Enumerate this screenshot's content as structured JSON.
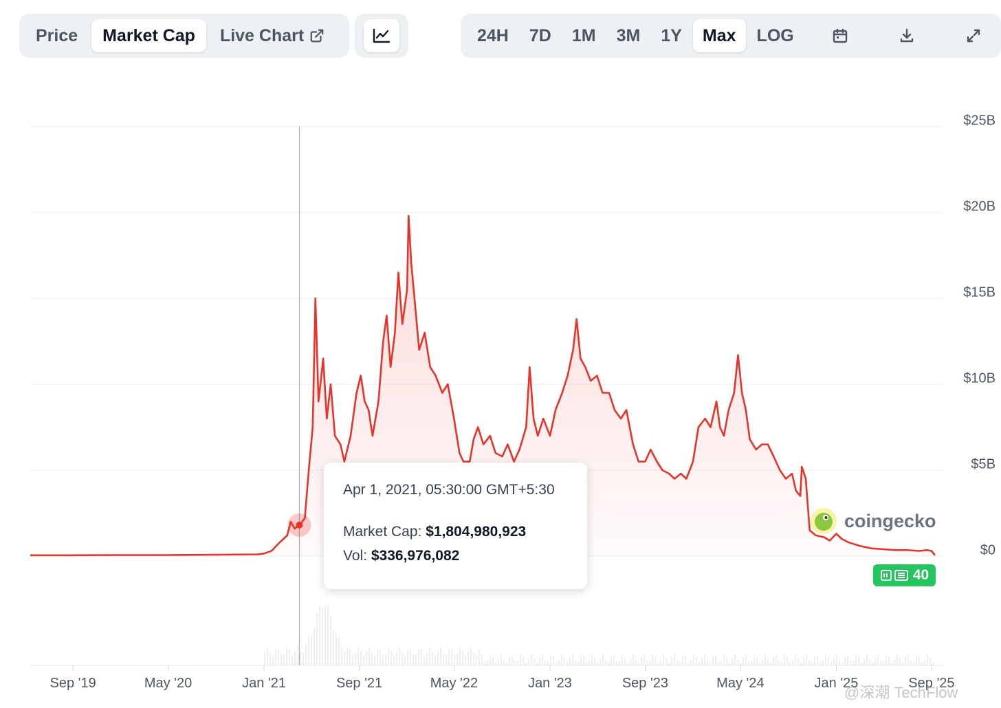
{
  "view_tabs": [
    {
      "label": "Price",
      "active": false
    },
    {
      "label": "Market Cap",
      "active": true
    },
    {
      "label": "Live Chart",
      "active": false
    }
  ],
  "chart_type_toggle_icon": "line-chart-icon",
  "range_tabs": [
    {
      "label": "24H",
      "active": false
    },
    {
      "label": "7D",
      "active": false
    },
    {
      "label": "1M",
      "active": false
    },
    {
      "label": "3M",
      "active": false
    },
    {
      "label": "1Y",
      "active": false
    },
    {
      "label": "Max",
      "active": true
    },
    {
      "label": "LOG",
      "active": false
    }
  ],
  "toolbar_icons": [
    "calendar-icon",
    "download-icon",
    "expand-icon"
  ],
  "tooltip": {
    "date": "Apr 1, 2021, 05:30:00 GMT+5:30",
    "market_cap_label": "Market Cap:",
    "market_cap_value": "$1,804,980,923",
    "vol_label": "Vol:",
    "vol_value": "$336,976,082"
  },
  "watermark": {
    "text": "coingecko"
  },
  "news_badge": {
    "count": "40"
  },
  "corner_watermark": "@深潮 TechFlow",
  "colors": {
    "line": "#e8332a",
    "badge": "#22c55e"
  },
  "chart_data": {
    "type": "area",
    "series_metric": "Market Cap (USD billions)",
    "ylim": [
      0,
      25
    ],
    "y_ticks": [
      {
        "value": 25,
        "label": "$25B"
      },
      {
        "value": 20,
        "label": "$20B"
      },
      {
        "value": 15,
        "label": "$15B"
      },
      {
        "value": 10,
        "label": "$10B"
      },
      {
        "value": 5,
        "label": "$5B"
      },
      {
        "value": 0,
        "label": "$0"
      }
    ],
    "xlim": [
      "2019-05-15",
      "2025-10-01"
    ],
    "x_ticks": [
      {
        "date": "2019-09-01",
        "label": "Sep '19"
      },
      {
        "date": "2020-05-01",
        "label": "May '20"
      },
      {
        "date": "2021-01-01",
        "label": "Jan '21"
      },
      {
        "date": "2021-09-01",
        "label": "Sep '21"
      },
      {
        "date": "2022-05-01",
        "label": "May '22"
      },
      {
        "date": "2023-01-01",
        "label": "Jan '23"
      },
      {
        "date": "2023-09-01",
        "label": "Sep '23"
      },
      {
        "date": "2024-05-01",
        "label": "May '24"
      },
      {
        "date": "2025-01-01",
        "label": "Jan '25"
      },
      {
        "date": "2025-09-01",
        "label": "Sep '25"
      }
    ],
    "hover_date": "2021-04-01",
    "hover_value": 1.805,
    "grid": true,
    "points": [
      [
        "2019-05-15",
        0.05
      ],
      [
        "2019-09-01",
        0.05
      ],
      [
        "2020-01-01",
        0.06
      ],
      [
        "2020-05-01",
        0.06
      ],
      [
        "2020-09-01",
        0.08
      ],
      [
        "2020-12-15",
        0.1
      ],
      [
        "2021-01-01",
        0.15
      ],
      [
        "2021-01-20",
        0.3
      ],
      [
        "2021-02-10",
        0.8
      ],
      [
        "2021-03-01",
        1.2
      ],
      [
        "2021-03-10",
        2.0
      ],
      [
        "2021-03-20",
        1.6
      ],
      [
        "2021-04-01",
        1.8
      ],
      [
        "2021-04-15",
        2.2
      ],
      [
        "2021-04-25",
        5.0
      ],
      [
        "2021-05-05",
        7.5
      ],
      [
        "2021-05-12",
        15.0
      ],
      [
        "2021-05-20",
        9.0
      ],
      [
        "2021-06-01",
        11.5
      ],
      [
        "2021-06-10",
        8.0
      ],
      [
        "2021-06-20",
        10.0
      ],
      [
        "2021-07-01",
        7.0
      ],
      [
        "2021-07-15",
        6.5
      ],
      [
        "2021-07-25",
        5.5
      ],
      [
        "2021-08-10",
        7.0
      ],
      [
        "2021-08-25",
        9.5
      ],
      [
        "2021-09-05",
        10.5
      ],
      [
        "2021-09-15",
        9.0
      ],
      [
        "2021-09-25",
        8.5
      ],
      [
        "2021-10-05",
        7.0
      ],
      [
        "2021-10-20",
        9.0
      ],
      [
        "2021-11-01",
        12.5
      ],
      [
        "2021-11-10",
        14.0
      ],
      [
        "2021-11-20",
        11.0
      ],
      [
        "2021-12-01",
        13.0
      ],
      [
        "2021-12-10",
        16.5
      ],
      [
        "2021-12-20",
        13.5
      ],
      [
        "2022-01-01",
        15.5
      ],
      [
        "2022-01-05",
        19.8
      ],
      [
        "2022-01-12",
        17.0
      ],
      [
        "2022-01-20",
        15.0
      ],
      [
        "2022-02-01",
        12.0
      ],
      [
        "2022-02-15",
        13.0
      ],
      [
        "2022-03-01",
        11.0
      ],
      [
        "2022-03-15",
        10.5
      ],
      [
        "2022-04-01",
        9.5
      ],
      [
        "2022-04-15",
        10.0
      ],
      [
        "2022-05-01",
        8.0
      ],
      [
        "2022-05-15",
        6.0
      ],
      [
        "2022-05-25",
        5.5
      ],
      [
        "2022-06-10",
        5.5
      ],
      [
        "2022-06-20",
        6.8
      ],
      [
        "2022-07-01",
        7.5
      ],
      [
        "2022-07-15",
        6.5
      ],
      [
        "2022-08-01",
        7.0
      ],
      [
        "2022-08-15",
        6.0
      ],
      [
        "2022-09-01",
        5.8
      ],
      [
        "2022-09-15",
        6.5
      ],
      [
        "2022-10-01",
        5.5
      ],
      [
        "2022-10-15",
        6.2
      ],
      [
        "2022-11-01",
        7.5
      ],
      [
        "2022-11-10",
        11.0
      ],
      [
        "2022-11-20",
        8.0
      ],
      [
        "2022-12-01",
        7.0
      ],
      [
        "2022-12-15",
        8.0
      ],
      [
        "2023-01-01",
        7.0
      ],
      [
        "2023-01-15",
        8.5
      ],
      [
        "2023-02-01",
        9.5
      ],
      [
        "2023-02-15",
        10.5
      ],
      [
        "2023-03-01",
        12.0
      ],
      [
        "2023-03-10",
        13.8
      ],
      [
        "2023-03-20",
        11.5
      ],
      [
        "2023-04-01",
        11.0
      ],
      [
        "2023-04-15",
        10.2
      ],
      [
        "2023-05-01",
        10.5
      ],
      [
        "2023-05-15",
        9.5
      ],
      [
        "2023-06-01",
        9.5
      ],
      [
        "2023-06-15",
        8.5
      ],
      [
        "2023-07-01",
        8.0
      ],
      [
        "2023-07-15",
        8.5
      ],
      [
        "2023-08-01",
        6.5
      ],
      [
        "2023-08-15",
        5.5
      ],
      [
        "2023-09-01",
        5.5
      ],
      [
        "2023-09-15",
        6.2
      ],
      [
        "2023-10-01",
        5.5
      ],
      [
        "2023-10-15",
        5.0
      ],
      [
        "2023-11-01",
        4.8
      ],
      [
        "2023-11-15",
        4.5
      ],
      [
        "2023-12-01",
        4.8
      ],
      [
        "2023-12-15",
        4.5
      ],
      [
        "2024-01-01",
        5.5
      ],
      [
        "2024-01-15",
        7.5
      ],
      [
        "2024-02-01",
        8.0
      ],
      [
        "2024-02-15",
        7.5
      ],
      [
        "2024-03-01",
        9.0
      ],
      [
        "2024-03-10",
        7.5
      ],
      [
        "2024-03-20",
        7.0
      ],
      [
        "2024-04-01",
        8.5
      ],
      [
        "2024-04-15",
        9.5
      ],
      [
        "2024-04-25",
        11.7
      ],
      [
        "2024-05-05",
        9.5
      ],
      [
        "2024-05-15",
        8.5
      ],
      [
        "2024-05-25",
        6.8
      ],
      [
        "2024-06-10",
        6.2
      ],
      [
        "2024-06-25",
        6.5
      ],
      [
        "2024-07-10",
        6.5
      ],
      [
        "2024-07-25",
        5.8
      ],
      [
        "2024-08-10",
        5.0
      ],
      [
        "2024-08-25",
        4.5
      ],
      [
        "2024-09-10",
        4.8
      ],
      [
        "2024-09-20",
        3.8
      ],
      [
        "2024-10-01",
        3.5
      ],
      [
        "2024-10-05",
        5.2
      ],
      [
        "2024-10-15",
        4.5
      ],
      [
        "2024-10-25",
        1.5
      ],
      [
        "2024-11-10",
        1.2
      ],
      [
        "2024-12-01",
        1.1
      ],
      [
        "2024-12-15",
        0.9
      ],
      [
        "2025-01-01",
        1.3
      ],
      [
        "2025-01-15",
        1.0
      ],
      [
        "2025-02-01",
        0.8
      ],
      [
        "2025-03-01",
        0.6
      ],
      [
        "2025-04-01",
        0.45
      ],
      [
        "2025-05-01",
        0.4
      ],
      [
        "2025-06-01",
        0.35
      ],
      [
        "2025-07-01",
        0.35
      ],
      [
        "2025-08-01",
        0.3
      ],
      [
        "2025-08-20",
        0.35
      ],
      [
        "2025-09-01",
        0.3
      ],
      [
        "2025-09-10",
        0.05
      ]
    ]
  }
}
